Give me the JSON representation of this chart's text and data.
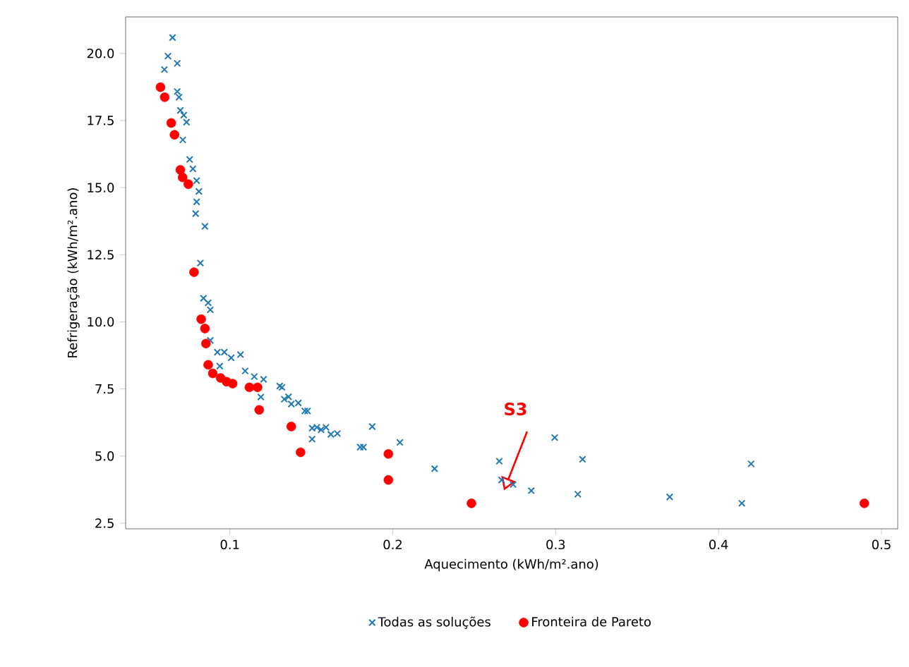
{
  "chart_data": {
    "type": "scatter",
    "xlabel": "Aquecimento (kWh/m².ano)",
    "ylabel": "Refrigeração (kWh/m².ano)",
    "xlim": [
      0.036,
      0.51
    ],
    "ylim": [
      2.29,
      21.36
    ],
    "xticks": [
      0.1,
      0.2,
      0.3,
      0.4,
      0.5
    ],
    "yticks": [
      {
        "value": 2.5,
        "label": "2.5"
      },
      {
        "value": 5,
        "label": "5.0"
      },
      {
        "value": 7.5,
        "label": "7.5"
      },
      {
        "value": 10,
        "label": "10.0"
      },
      {
        "value": 12.5,
        "label": "12.5"
      },
      {
        "value": 15,
        "label": "15.0"
      },
      {
        "value": 17.5,
        "label": "17.5"
      },
      {
        "value": 20,
        "label": "20.0"
      }
    ],
    "legend": "bottom",
    "grid": false,
    "annotations": [
      "S3"
    ],
    "series": [
      {
        "name": "Todas as soluções",
        "color": "#1f77b4",
        "marker": "cross",
        "x": [
          0.0648,
          0.062,
          0.0677,
          0.0598,
          0.0677,
          0.0688,
          0.0696,
          0.0717,
          0.0734,
          0.0711,
          0.0753,
          0.0773,
          0.0796,
          0.081,
          0.0796,
          0.079,
          0.0847,
          0.0819,
          0.0838,
          0.0867,
          0.088,
          0.088,
          0.0923,
          0.0966,
          0.1008,
          0.1065,
          0.0938,
          0.1094,
          0.115,
          0.1207,
          0.119,
          0.1306,
          0.1334,
          0.1377,
          0.142,
          0.1477,
          0.1505,
          0.1505,
          0.156,
          0.162,
          0.132,
          0.136,
          0.146,
          0.1534,
          0.159,
          0.166,
          0.18,
          0.182,
          0.1874,
          0.2044,
          0.2257,
          0.2654,
          0.2668,
          0.2739,
          0.285,
          0.2994,
          0.3165,
          0.3136,
          0.37,
          0.4143,
          0.42
        ],
        "values": [
          20.59,
          19.9,
          19.63,
          19.4,
          18.58,
          18.37,
          17.88,
          17.7,
          17.44,
          16.78,
          16.05,
          15.7,
          15.26,
          14.86,
          14.47,
          14.03,
          13.56,
          12.19,
          10.88,
          10.71,
          10.45,
          9.31,
          8.87,
          8.87,
          8.66,
          8.78,
          8.35,
          8.17,
          7.96,
          7.86,
          7.2,
          7.61,
          7.12,
          6.94,
          6.98,
          6.68,
          6.04,
          5.63,
          5.98,
          5.81,
          7.56,
          7.21,
          6.68,
          6.07,
          6.07,
          5.84,
          5.33,
          5.33,
          6.1,
          5.51,
          4.53,
          4.81,
          4.11,
          3.94,
          3.71,
          5.69,
          4.88,
          3.58,
          3.48,
          3.24,
          4.71
        ]
      },
      {
        "name": "Fronteira de Pareto",
        "color": "#ff0000",
        "marker": "circle",
        "x": [
          0.0574,
          0.06,
          0.064,
          0.066,
          0.0696,
          0.071,
          0.0745,
          0.078,
          0.0824,
          0.0847,
          0.0853,
          0.0867,
          0.0895,
          0.0943,
          0.098,
          0.1017,
          0.112,
          0.117,
          0.118,
          0.1377,
          0.1434,
          0.1973,
          0.1973,
          0.2483,
          0.4895
        ],
        "values": [
          18.74,
          18.37,
          17.41,
          16.97,
          15.66,
          15.38,
          15.13,
          11.85,
          10.1,
          9.75,
          9.19,
          8.4,
          8.08,
          7.91,
          7.77,
          7.7,
          7.56,
          7.56,
          6.72,
          6.1,
          5.14,
          5.08,
          4.11,
          3.24,
          3.24
        ]
      }
    ]
  }
}
